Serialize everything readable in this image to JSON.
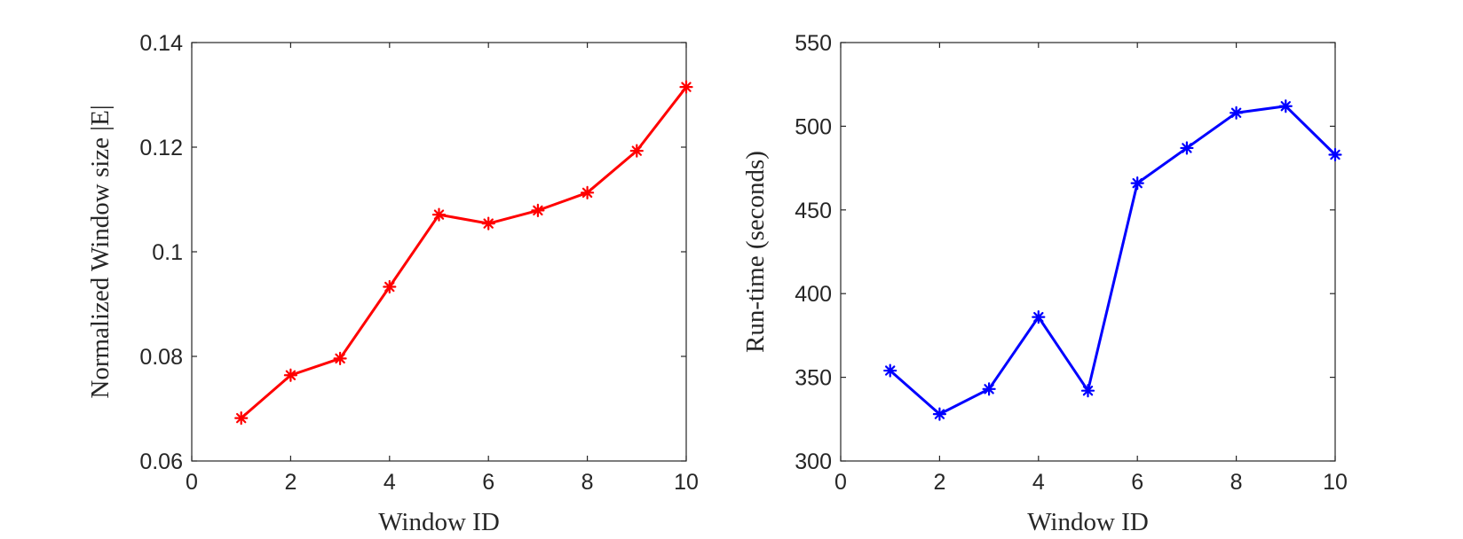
{
  "chart_data": [
    {
      "type": "line",
      "title": "",
      "xlabel": "Window ID",
      "ylabel": "Normalized Window size |E|",
      "xlim": [
        0,
        10
      ],
      "ylim": [
        0.06,
        0.14
      ],
      "xticks": [
        0,
        2,
        4,
        6,
        8,
        10
      ],
      "xtick_labels": [
        "0",
        "2",
        "4",
        "6",
        "8",
        "10"
      ],
      "yticks": [
        0.06,
        0.08,
        0.1,
        0.12,
        0.14
      ],
      "ytick_labels": [
        "0.06",
        "0.08",
        "0.1",
        "0.12",
        "0.14"
      ],
      "grid": false,
      "series": [
        {
          "color": "#ff0000",
          "marker": "asterisk",
          "x": [
            1,
            2,
            3,
            4,
            5,
            6,
            7,
            8,
            9,
            10
          ],
          "y": [
            0.0682,
            0.0764,
            0.0796,
            0.0933,
            0.1071,
            0.1054,
            0.1079,
            0.1113,
            0.1193,
            0.1315
          ]
        }
      ]
    },
    {
      "type": "line",
      "title": "",
      "xlabel": "Window ID",
      "ylabel": "Run-time (seconds)",
      "xlim": [
        0,
        10
      ],
      "ylim": [
        300,
        550
      ],
      "xticks": [
        0,
        2,
        4,
        6,
        8,
        10
      ],
      "xtick_labels": [
        "0",
        "2",
        "4",
        "6",
        "8",
        "10"
      ],
      "yticks": [
        300,
        350,
        400,
        450,
        500,
        550
      ],
      "ytick_labels": [
        "300",
        "350",
        "400",
        "450",
        "500",
        "550"
      ],
      "grid": false,
      "series": [
        {
          "color": "#0000ff",
          "marker": "asterisk",
          "x": [
            1,
            2,
            3,
            4,
            5,
            6,
            7,
            8,
            9,
            10
          ],
          "y": [
            354,
            328,
            343,
            386,
            342,
            466,
            487,
            508,
            512,
            483
          ]
        }
      ]
    }
  ]
}
